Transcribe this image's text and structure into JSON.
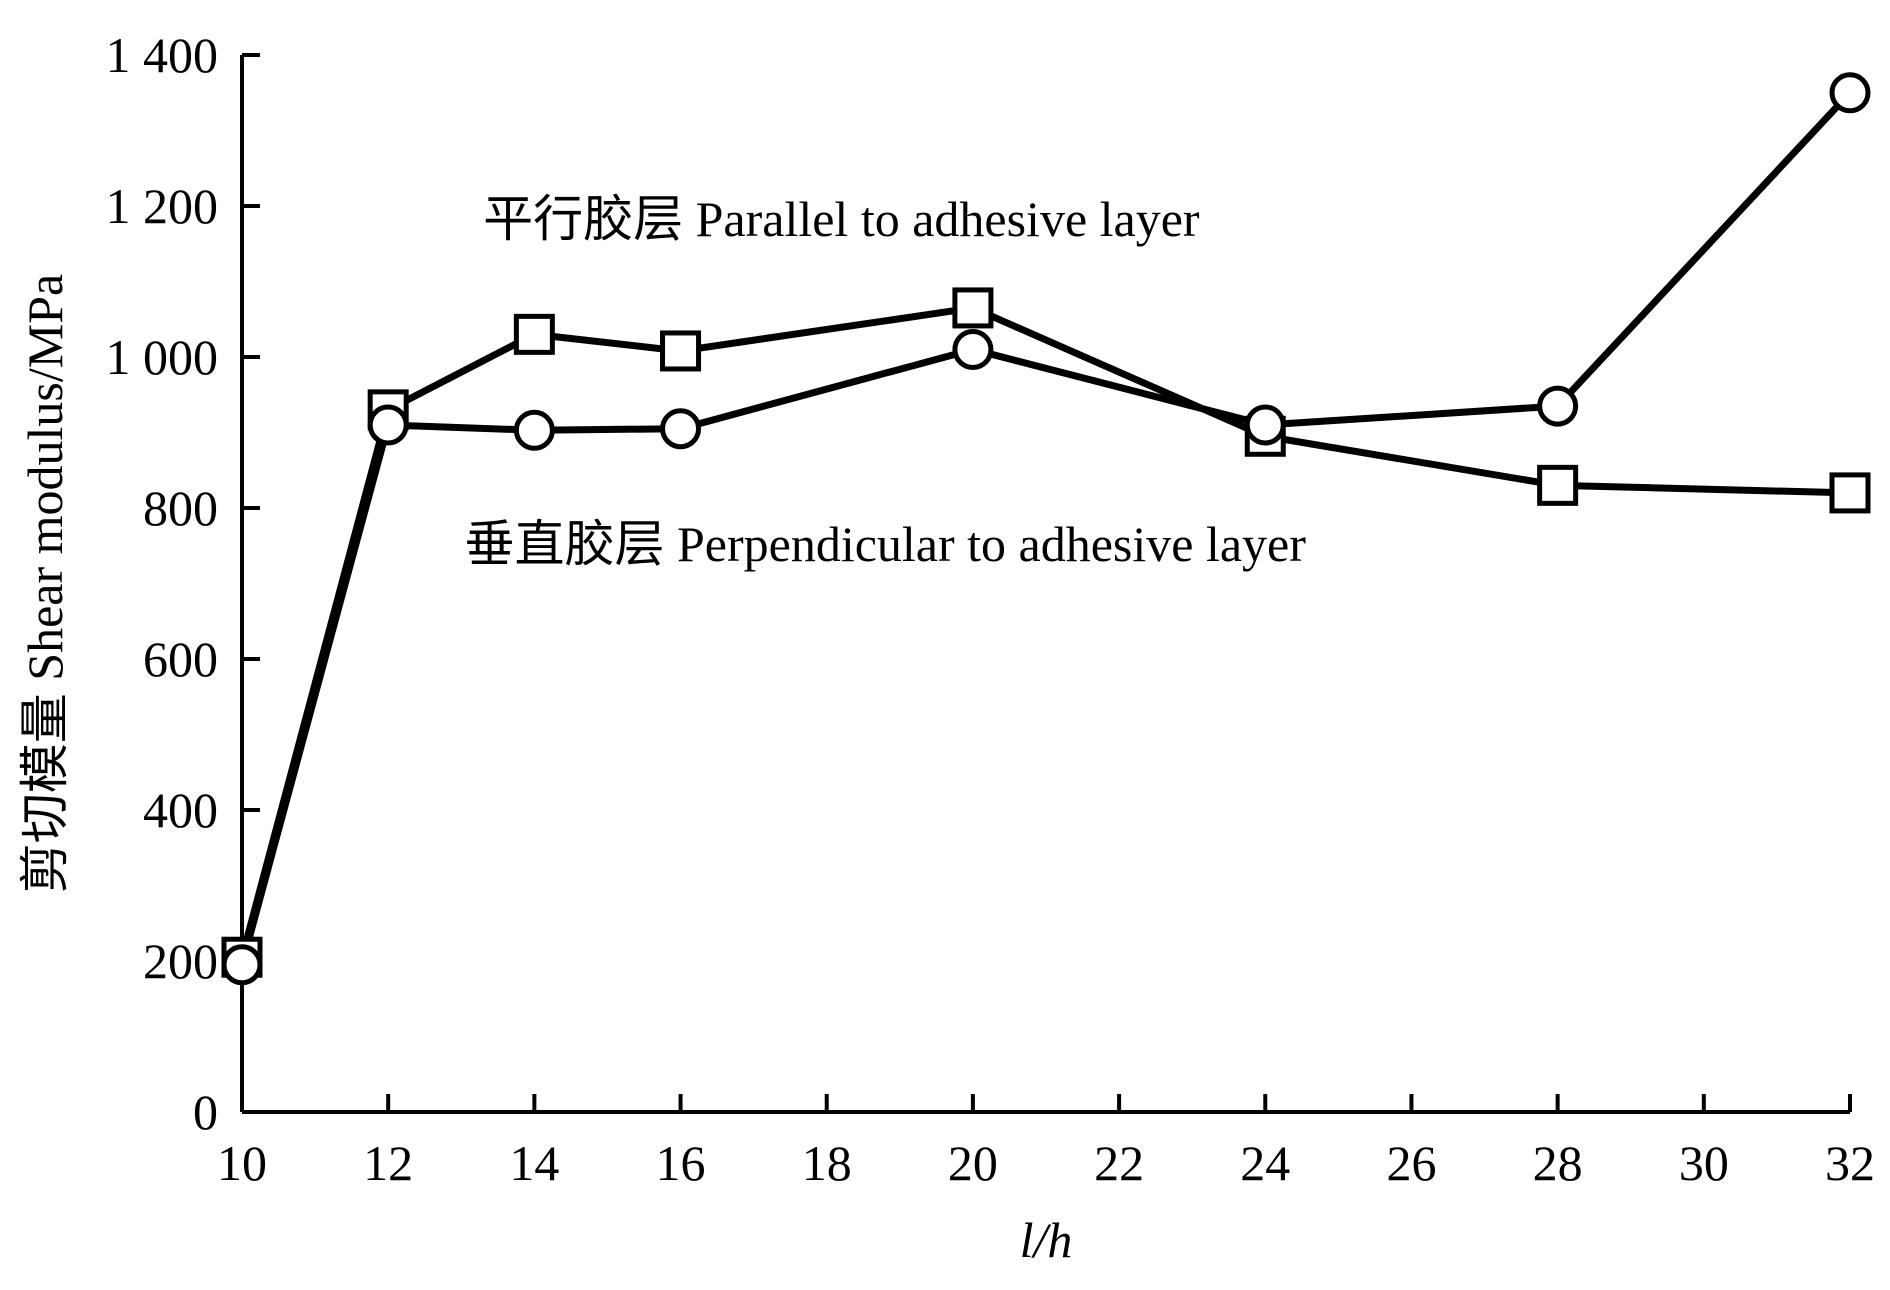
{
  "chart_data": {
    "type": "line",
    "xlabel": "l/h",
    "ylabel": "剪切模量 Shear modulus/MPa",
    "xlim": [
      10,
      32
    ],
    "ylim": [
      0,
      1400
    ],
    "xticks": [
      10,
      12,
      14,
      16,
      18,
      20,
      22,
      24,
      26,
      28,
      30,
      32
    ],
    "yticks": [
      0,
      200,
      400,
      600,
      800,
      1000,
      1200,
      1400
    ],
    "ytick_labels": [
      "0",
      "200",
      "400",
      "600",
      "800",
      "1 000",
      "1 200",
      "1 400"
    ],
    "grid": false,
    "series": [
      {
        "marker": "square",
        "x": [
          10,
          12,
          14,
          16,
          20,
          24,
          28,
          32
        ],
        "y": [
          205,
          930,
          1030,
          1008,
          1065,
          895,
          830,
          820
        ]
      },
      {
        "marker": "circle",
        "x": [
          10,
          12,
          14,
          16,
          20,
          24,
          28,
          32
        ],
        "y": [
          195,
          910,
          903,
          905,
          1010,
          910,
          935,
          1350
        ]
      }
    ],
    "annotations": [
      {
        "text": "平行胶层  Parallel to adhesive layer",
        "x": 18.2,
        "y": 1160
      },
      {
        "text": "垂直胶层  Perpendicular to adhesive layer",
        "x": 18.8,
        "y": 730
      }
    ]
  }
}
